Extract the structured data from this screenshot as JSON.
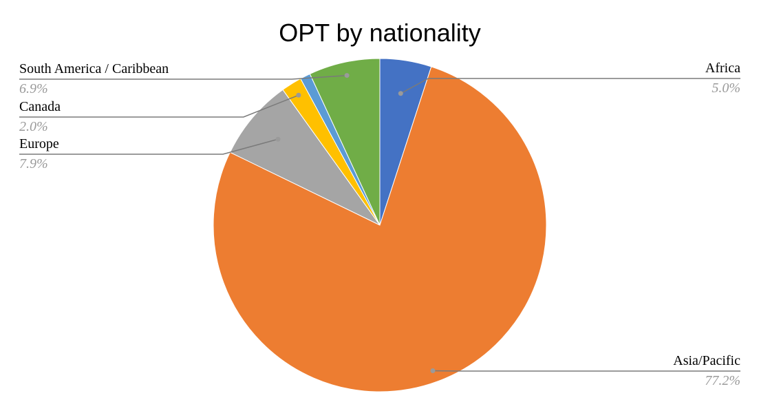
{
  "chart_data": {
    "type": "pie",
    "title": "OPT by nationality",
    "slices": [
      {
        "label": "Africa",
        "value": 5.0,
        "value_label": "5.0%",
        "color": "#4472C4"
      },
      {
        "label": "Asia/Pacific",
        "value": 77.2,
        "value_label": "77.2%",
        "color": "#ED7D31"
      },
      {
        "label": "Europe",
        "value": 7.9,
        "value_label": "7.9%",
        "color": "#A5A5A5"
      },
      {
        "label": "Canada",
        "value": 2.0,
        "value_label": "2.0%",
        "color": "#FFC000"
      },
      {
        "label": "",
        "value": 1.0,
        "value_label": "",
        "color": "#5B9BD5"
      },
      {
        "label": "South America / Caribbean",
        "value": 6.9,
        "value_label": "6.9%",
        "color": "#70AD47"
      }
    ],
    "start_angle": "12 o'clock",
    "direction": "clockwise"
  }
}
